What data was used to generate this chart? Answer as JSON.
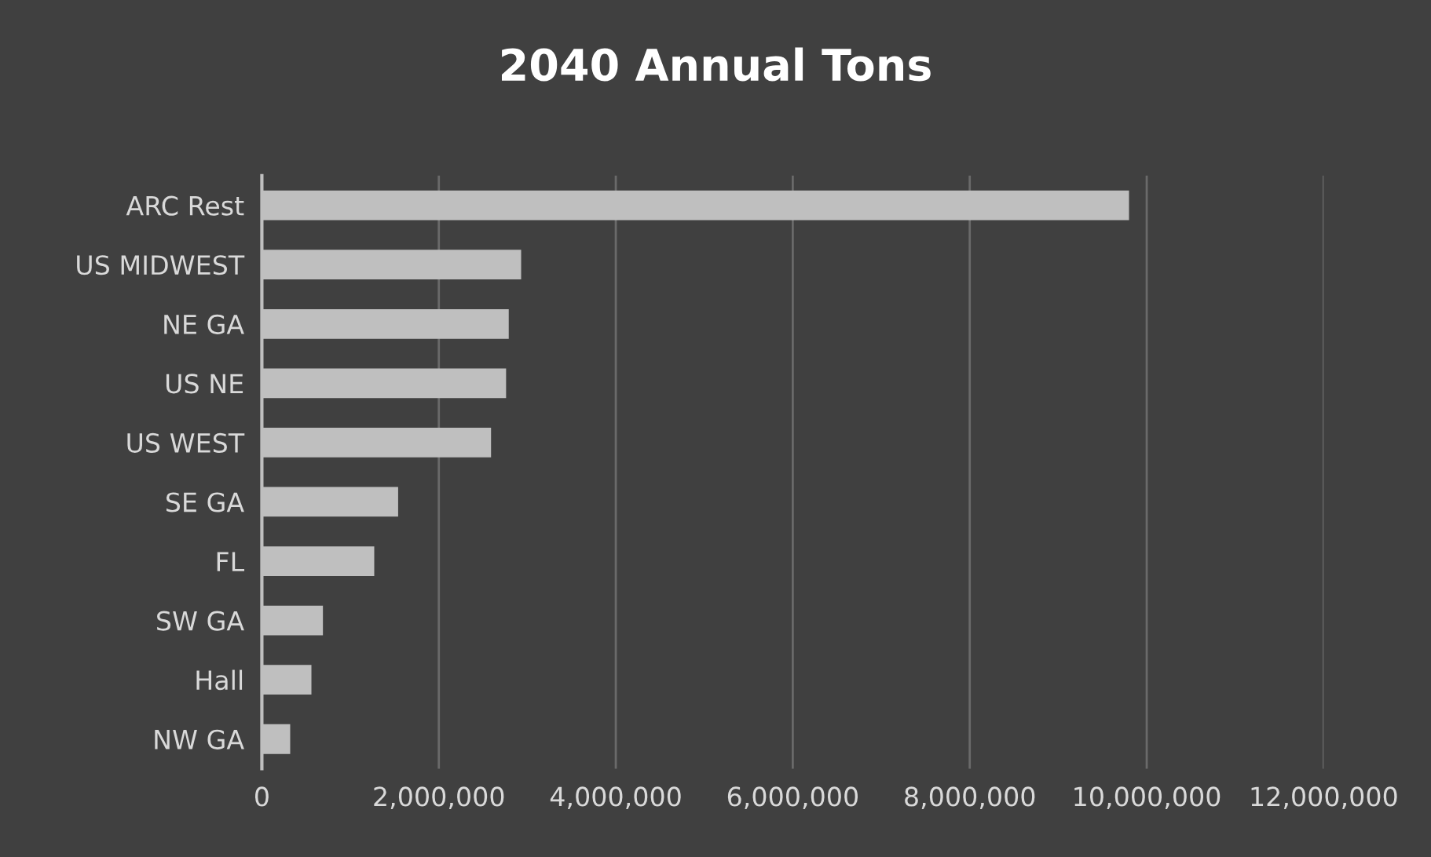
{
  "chart_data": {
    "type": "bar",
    "orientation": "horizontal",
    "title": "2040 Annual Tons",
    "categories": [
      "ARC Rest",
      "US MIDWEST",
      "NE GA",
      "US NE",
      "US WEST",
      "SE GA",
      "FL",
      "SW GA",
      "Hall",
      "NW GA"
    ],
    "values": [
      9800000,
      2930000,
      2790000,
      2760000,
      2590000,
      1540000,
      1270000,
      690000,
      560000,
      320000
    ],
    "color": "#bfbfbf",
    "xlim": [
      0,
      12000000
    ],
    "xticks": [
      {
        "value": 0,
        "label": "0"
      },
      {
        "value": 2000000,
        "label": "2,000,000"
      },
      {
        "value": 4000000,
        "label": "4,000,000"
      },
      {
        "value": 6000000,
        "label": "6,000,000"
      },
      {
        "value": 8000000,
        "label": "8,000,000"
      },
      {
        "value": 10000000,
        "label": "10,000,000"
      },
      {
        "value": 12000000,
        "label": "12,000,000"
      }
    ],
    "grid": "x",
    "legend": false
  }
}
